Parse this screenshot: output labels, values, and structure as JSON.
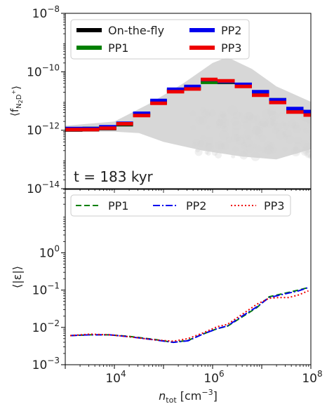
{
  "chart_data": [
    {
      "type": "step",
      "panel": "top",
      "ylabel_main": "⟨f",
      "ylabel_sub": "N",
      "ylabel_sub2": "2",
      "ylabel_tail": "D",
      "ylabel_sup": "+",
      "ylabel_close": "⟩",
      "yscale": "log",
      "xscale": "log",
      "xlim": [
        1000,
        100000000
      ],
      "ylim": [
        1e-14,
        1e-08
      ],
      "yticks": [
        {
          "value": -14,
          "base": "10",
          "exp": "−14"
        },
        {
          "value": -12,
          "base": "10",
          "exp": "−12"
        },
        {
          "value": -10,
          "base": "10",
          "exp": "−10"
        },
        {
          "value": -8,
          "base": "10",
          "exp": "−8"
        }
      ],
      "annotation": "t = 183 kyr",
      "legend": {
        "placement": "upper-left",
        "entries": [
          {
            "name": "On-the-fly",
            "color": "#000000"
          },
          {
            "name": "PP2",
            "color": "#0000ee"
          },
          {
            "name": "PP1",
            "color": "#008000"
          },
          {
            "name": "PP3",
            "color": "#ee0000"
          }
        ]
      },
      "bin_edges_log10": [
        3.0,
        3.35,
        3.69,
        4.04,
        4.38,
        4.73,
        5.07,
        5.42,
        5.76,
        6.1,
        6.45,
        6.8,
        7.15,
        7.5,
        7.85,
        8.2
      ],
      "series": [
        {
          "name": "On-the-fly",
          "color": "#000000",
          "values_log10": [
            -11.98,
            -11.97,
            -11.93,
            -11.8,
            -11.45,
            -11.04,
            -10.65,
            -10.56,
            -10.33,
            -10.35,
            -10.47,
            -10.74,
            -11.0,
            -11.32,
            -11.45
          ]
        },
        {
          "name": "PP1",
          "color": "#008000",
          "values_log10": [
            -11.96,
            -11.95,
            -11.9,
            -11.78,
            -11.47,
            -11.04,
            -10.63,
            -10.55,
            -10.35,
            -10.33,
            -10.47,
            -10.74,
            -10.97,
            -11.32,
            -11.46
          ]
        },
        {
          "name": "PP2",
          "color": "#0000ee",
          "values_log10": [
            -11.94,
            -11.94,
            -11.88,
            -11.76,
            -11.42,
            -10.98,
            -10.6,
            -10.5,
            -10.27,
            -10.33,
            -10.43,
            -10.68,
            -10.96,
            -11.26,
            -11.36
          ]
        },
        {
          "name": "PP3",
          "color": "#ee0000",
          "values_log10": [
            -11.98,
            -11.98,
            -11.93,
            -11.78,
            -11.5,
            -11.08,
            -10.68,
            -10.59,
            -10.26,
            -10.31,
            -10.5,
            -10.8,
            -11.05,
            -11.38,
            -11.48
          ]
        }
      ],
      "scatter_color": "#d3d3d3"
    },
    {
      "type": "line",
      "panel": "bottom",
      "ylabel": "⟨|ε|⟩",
      "xlabel_main": "n",
      "xlabel_sub": "tot",
      "xlabel_unit": " [cm",
      "xlabel_sup": "−3",
      "xlabel_close": "]",
      "yscale": "log",
      "xscale": "log",
      "xlim": [
        1000,
        100000000
      ],
      "ylim": [
        0.001,
        50
      ],
      "yticks": [
        {
          "value": -3,
          "base": "10",
          "exp": "−3"
        },
        {
          "value": -2,
          "base": "10",
          "exp": "−2"
        },
        {
          "value": -1,
          "base": "10",
          "exp": "−1"
        },
        {
          "value": 0,
          "base": "10",
          "exp": "0"
        }
      ],
      "xticks": [
        {
          "value": 4,
          "base": "10",
          "exp": "4"
        },
        {
          "value": 6,
          "base": "10",
          "exp": "6"
        },
        {
          "value": 8,
          "base": "10",
          "exp": "8"
        }
      ],
      "legend": {
        "placement": "upper",
        "entries": [
          {
            "name": "PP1",
            "color": "#008000",
            "dash": "8,4"
          },
          {
            "name": "PP2",
            "color": "#0000ee",
            "dash": "10,3,2,3"
          },
          {
            "name": "PP3",
            "color": "#ee0000",
            "dash": "2,3"
          }
        ]
      },
      "series": [
        {
          "name": "PP1",
          "color": "#008000",
          "dash": "8,4",
          "x_log10": [
            3.1,
            3.5,
            3.9,
            4.3,
            4.8,
            5.2,
            5.5,
            5.8,
            6.1,
            6.3,
            6.6,
            6.9,
            7.15,
            7.35,
            7.55,
            7.75,
            7.95
          ],
          "y_log10": [
            -2.22,
            -2.2,
            -2.2,
            -2.24,
            -2.32,
            -2.4,
            -2.35,
            -2.18,
            -2.03,
            -1.97,
            -1.72,
            -1.47,
            -1.18,
            -1.12,
            -1.06,
            -1.0,
            -0.93
          ]
        },
        {
          "name": "PP2",
          "color": "#0000ee",
          "dash": "10,3,2,3",
          "x_log10": [
            3.1,
            3.5,
            3.9,
            4.3,
            4.8,
            5.2,
            5.5,
            5.8,
            6.1,
            6.3,
            6.6,
            6.9,
            7.15,
            7.35,
            7.55,
            7.75,
            7.95
          ],
          "y_log10": [
            -2.22,
            -2.2,
            -2.2,
            -2.25,
            -2.33,
            -2.4,
            -2.36,
            -2.18,
            -2.03,
            -1.96,
            -1.7,
            -1.45,
            -1.2,
            -1.14,
            -1.08,
            -1.02,
            -0.93
          ]
        },
        {
          "name": "PP3",
          "color": "#ee0000",
          "dash": "2,3",
          "x_log10": [
            3.1,
            3.5,
            3.9,
            4.3,
            4.8,
            5.2,
            5.5,
            5.8,
            6.1,
            6.3,
            6.6,
            6.9,
            7.15,
            7.35,
            7.55,
            7.75,
            7.95
          ],
          "y_log10": [
            -2.22,
            -2.18,
            -2.2,
            -2.25,
            -2.33,
            -2.37,
            -2.3,
            -2.15,
            -1.98,
            -1.92,
            -1.65,
            -1.38,
            -1.22,
            -1.2,
            -1.2,
            -1.13,
            -1.02
          ]
        }
      ]
    }
  ]
}
